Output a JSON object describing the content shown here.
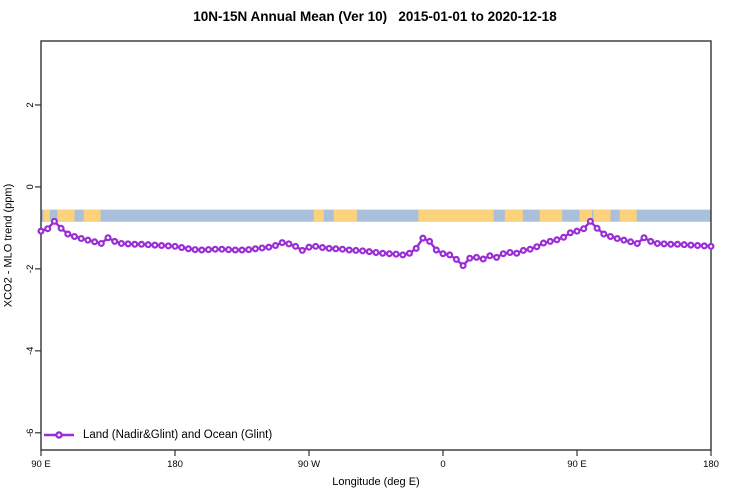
{
  "chart": {
    "title": "10N-15N Annual Mean (Ver 10)   2015-01-01 to 2020-12-18"
  },
  "chart_data": {
    "type": "line",
    "title": "10N-15N Annual Mean (Ver 10)   2015-01-01 to 2020-12-18",
    "xlabel": "Longitude (deg E)",
    "ylabel": "XCO2 - MLO trend (ppm)",
    "xlim": [
      90,
      540
    ],
    "ylim": [
      -6.42,
      3.56
    ],
    "grid": false,
    "x_ticks": [
      {
        "value": 90,
        "label": "90 E"
      },
      {
        "value": 180,
        "label": "180"
      },
      {
        "value": 270,
        "label": "90 W"
      },
      {
        "value": 360,
        "label": "0"
      },
      {
        "value": 450,
        "label": "90 E"
      },
      {
        "value": 540,
        "label": "180"
      }
    ],
    "y_ticks": [
      {
        "value": 2,
        "label": "2"
      },
      {
        "value": 0,
        "label": "0"
      },
      {
        "value": -2,
        "label": "-2"
      },
      {
        "value": -4,
        "label": "-4"
      },
      {
        "value": -6,
        "label": "-6"
      }
    ],
    "series": [
      {
        "name": "Land (Nadir&Glint) and Ocean (Glint)",
        "color": "#9b2dd7",
        "marker": "open-circle",
        "x": [
          90,
          94.5,
          99,
          103.5,
          108,
          112.5,
          117,
          121.5,
          126,
          130.5,
          135,
          139.5,
          144,
          148.5,
          153,
          157.5,
          162,
          166.5,
          171,
          175.5,
          180,
          184.5,
          189,
          193.5,
          198,
          202.5,
          207,
          211.5,
          216,
          220.5,
          225,
          229.5,
          234,
          238.5,
          243,
          247.5,
          252,
          256.5,
          261,
          265.5,
          270,
          274.5,
          279,
          283.5,
          288,
          292.5,
          297,
          301.5,
          306,
          310.5,
          315,
          319.5,
          324,
          328.5,
          333,
          337.5,
          342,
          346.5,
          351,
          355.5,
          360,
          364.5,
          369,
          373.5,
          378,
          382.5,
          387,
          391.5,
          396,
          400.5,
          405,
          409.5,
          414,
          418.5,
          423,
          427.5,
          432,
          436.5,
          441,
          445.5,
          450,
          454.5,
          459,
          463.5,
          468,
          472.5,
          477,
          481.5,
          486,
          490.5,
          495,
          499.5,
          504,
          508.5,
          513,
          517.5,
          522,
          526.5,
          531,
          535.5,
          540
        ],
        "values": [
          -1.08,
          -1.02,
          -0.84,
          -1.01,
          -1.15,
          -1.21,
          -1.26,
          -1.3,
          -1.34,
          -1.38,
          -1.24,
          -1.33,
          -1.38,
          -1.39,
          -1.4,
          -1.4,
          -1.41,
          -1.42,
          -1.43,
          -1.44,
          -1.45,
          -1.48,
          -1.51,
          -1.53,
          -1.54,
          -1.53,
          -1.52,
          -1.52,
          -1.53,
          -1.54,
          -1.54,
          -1.53,
          -1.51,
          -1.49,
          -1.47,
          -1.43,
          -1.36,
          -1.39,
          -1.45,
          -1.55,
          -1.47,
          -1.45,
          -1.48,
          -1.5,
          -1.51,
          -1.52,
          -1.54,
          -1.55,
          -1.56,
          -1.58,
          -1.6,
          -1.62,
          -1.63,
          -1.64,
          -1.66,
          -1.62,
          -1.5,
          -1.25,
          -1.33,
          -1.54,
          -1.63,
          -1.66,
          -1.77,
          -1.92,
          -1.74,
          -1.72,
          -1.76,
          -1.68,
          -1.72,
          -1.63,
          -1.6,
          -1.62,
          -1.55,
          -1.52,
          -1.46,
          -1.37,
          -1.33,
          -1.29,
          -1.23,
          -1.12,
          -1.08,
          -1.02,
          -0.84,
          -1.01,
          -1.15,
          -1.21,
          -1.26,
          -1.3,
          -1.34,
          -1.38,
          -1.24,
          -1.33,
          -1.38,
          -1.39,
          -1.4,
          -1.4,
          -1.41,
          -1.42,
          -1.43,
          -1.44,
          -1.45
        ]
      }
    ],
    "land_ocean_band": {
      "y_top": -0.555,
      "y_bottom": -0.85,
      "ocean_color": "#aabfd9",
      "land_color": "#fdd27d",
      "land_segments": [
        [
          91.7,
          96.0
        ],
        [
          101.1,
          112.5
        ],
        [
          118.6,
          130.0
        ],
        [
          273.2,
          279.9
        ],
        [
          286.6,
          302.1
        ],
        [
          343.5,
          394.0
        ],
        [
          401.5,
          413.6
        ],
        [
          425.0,
          440.0
        ],
        [
          451.7,
          460.0
        ],
        [
          461.1,
          472.5
        ],
        [
          478.6,
          490.0
        ]
      ]
    },
    "legend": {
      "position": "bottom-left",
      "entries": [
        {
          "label": "Land (Nadir&Glint) and Ocean (Glint)",
          "color": "#9b2dd7",
          "marker": "open-circle"
        }
      ]
    },
    "axis_color": "#333333"
  }
}
